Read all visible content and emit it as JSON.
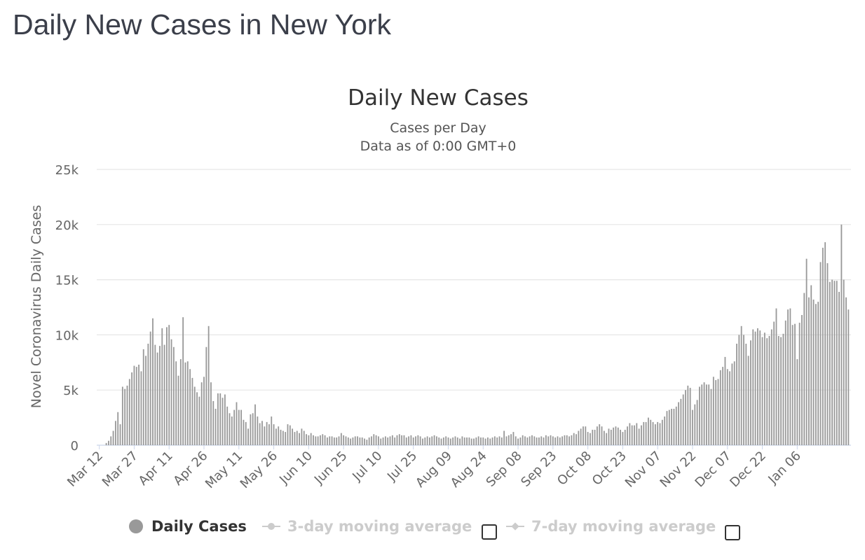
{
  "page": {
    "title": "Daily New Cases in New York"
  },
  "legend": {
    "items": [
      {
        "label": "Daily Cases",
        "active": true,
        "symbol": "circle"
      },
      {
        "label": "3-day moving average",
        "active": false,
        "symbol": "line-circle"
      },
      {
        "label": "7-day moving average",
        "active": false,
        "symbol": "line-diamond"
      }
    ]
  },
  "colors": {
    "bar": "#999999",
    "grid": "#e6e6e6",
    "axis": "#ccd6eb",
    "text": "#333333"
  },
  "chart_data": {
    "type": "bar",
    "title": "Daily New Cases",
    "subtitle": "Cases per Day",
    "subtitle2": "Data as of 0:00 GMT+0",
    "xlabel": "",
    "ylabel": "Novel Coronavirus Daily Cases",
    "ylim": [
      0,
      25000
    ],
    "yticks": [
      {
        "value": 0,
        "label": "0"
      },
      {
        "value": 5000,
        "label": "5k"
      },
      {
        "value": 10000,
        "label": "10k"
      },
      {
        "value": 15000,
        "label": "15k"
      },
      {
        "value": 20000,
        "label": "20k"
      },
      {
        "value": 25000,
        "label": "25k"
      }
    ],
    "xticks": [
      {
        "index": 0,
        "label": "Mar 12"
      },
      {
        "index": 15,
        "label": "Mar 27"
      },
      {
        "index": 30,
        "label": "Apr 11"
      },
      {
        "index": 45,
        "label": "Apr 26"
      },
      {
        "index": 60,
        "label": "May 11"
      },
      {
        "index": 75,
        "label": "May 26"
      },
      {
        "index": 90,
        "label": "Jun 10"
      },
      {
        "index": 105,
        "label": "Jun 25"
      },
      {
        "index": 120,
        "label": "Jul 10"
      },
      {
        "index": 135,
        "label": "Jul 25"
      },
      {
        "index": 150,
        "label": "Aug 09"
      },
      {
        "index": 165,
        "label": "Aug 24"
      },
      {
        "index": 180,
        "label": "Sep 08"
      },
      {
        "index": 195,
        "label": "Sep 23"
      },
      {
        "index": 210,
        "label": "Oct 08"
      },
      {
        "index": 225,
        "label": "Oct 23"
      },
      {
        "index": 240,
        "label": "Nov 07"
      },
      {
        "index": 255,
        "label": "Nov 22"
      },
      {
        "index": 270,
        "label": "Dec 07"
      },
      {
        "index": 285,
        "label": "Dec 22"
      },
      {
        "index": 300,
        "label": "Jan 06"
      }
    ],
    "grid": true,
    "legend_position": "bottom",
    "series": [
      {
        "name": "Daily Cases",
        "values": [
          0,
          0,
          0,
          200,
          400,
          800,
          1300,
          2200,
          3000,
          1900,
          5300,
          5100,
          5400,
          6000,
          6600,
          7200,
          7100,
          7300,
          6700,
          8700,
          8100,
          9200,
          10300,
          11500,
          9100,
          8400,
          9000,
          10600,
          9100,
          10700,
          10900,
          9600,
          8900,
          7600,
          6300,
          7800,
          11600,
          7500,
          7600,
          6900,
          6100,
          5300,
          4800,
          4400,
          5700,
          6200,
          8900,
          10800,
          5700,
          4000,
          3300,
          4700,
          4700,
          4300,
          4600,
          3500,
          2900,
          2600,
          3200,
          3900,
          3200,
          3200,
          2300,
          2100,
          1500,
          2800,
          2900,
          3700,
          2600,
          2000,
          2200,
          1700,
          2100,
          1900,
          2600,
          1900,
          1500,
          1700,
          1400,
          1300,
          1200,
          1900,
          1800,
          1500,
          1200,
          1300,
          1100,
          1500,
          1300,
          1000,
          900,
          1100,
          900,
          800,
          800,
          900,
          1000,
          900,
          700,
          800,
          800,
          700,
          700,
          800,
          1100,
          900,
          800,
          700,
          600,
          700,
          800,
          800,
          700,
          700,
          600,
          500,
          700,
          800,
          1000,
          900,
          800,
          600,
          700,
          800,
          700,
          800,
          900,
          700,
          900,
          1000,
          900,
          900,
          700,
          800,
          900,
          700,
          800,
          900,
          800,
          600,
          700,
          800,
          700,
          800,
          900,
          800,
          700,
          600,
          700,
          800,
          700,
          600,
          700,
          800,
          700,
          600,
          800,
          700,
          700,
          700,
          600,
          600,
          700,
          800,
          700,
          700,
          600,
          700,
          600,
          700,
          800,
          700,
          800,
          700,
          1300,
          800,
          900,
          1000,
          1200,
          800,
          600,
          700,
          900,
          800,
          700,
          800,
          900,
          800,
          700,
          700,
          800,
          700,
          900,
          800,
          900,
          800,
          700,
          800,
          700,
          800,
          900,
          900,
          800,
          900,
          1100,
          1000,
          1300,
          1500,
          1700,
          1700,
          1200,
          1100,
          1400,
          1400,
          1700,
          1900,
          1700,
          1300,
          1100,
          1500,
          1400,
          1600,
          1700,
          1600,
          1400,
          1200,
          1400,
          1700,
          2000,
          1800,
          1800,
          2000,
          1500,
          1800,
          2100,
          2100,
          2500,
          2300,
          2100,
          1900,
          2100,
          2000,
          2300,
          2600,
          3100,
          3200,
          3300,
          3300,
          3500,
          3900,
          4200,
          4600,
          5000,
          5400,
          5200,
          3200,
          3700,
          4100,
          5300,
          5500,
          5700,
          5500,
          5500,
          5100,
          6200,
          5900,
          6000,
          6800,
          7100,
          8000,
          6900,
          6700,
          7400,
          7600,
          9200,
          10000,
          10800,
          10000,
          9200,
          8100,
          9500,
          10500,
          10300,
          10600,
          10400,
          9800,
          10200,
          9700,
          9900,
          10500,
          11200,
          12400,
          9900,
          9800,
          10100,
          11300,
          12300,
          12400,
          10900,
          11000,
          7800,
          11100,
          11800,
          13800,
          16900,
          13400,
          14500,
          13200,
          12800,
          13000,
          16600,
          17900,
          18400,
          16500,
          14800,
          15000,
          14900,
          14900,
          13900,
          20000,
          15000,
          13400,
          12300
        ]
      }
    ]
  }
}
